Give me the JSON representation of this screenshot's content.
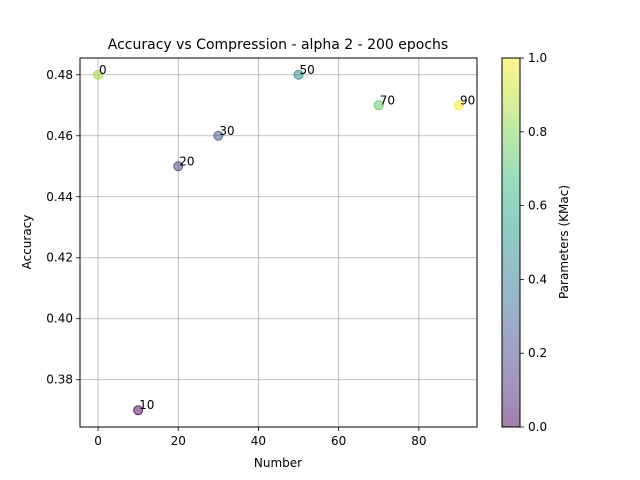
{
  "chart_data": {
    "type": "scatter",
    "title": "Accuracy vs Compression - alpha 2 - 200 epochs",
    "xlabel": "Number",
    "ylabel": "Accuracy",
    "xlim": [
      -4.5,
      94.5
    ],
    "ylim": [
      0.3645,
      0.4855
    ],
    "xticks": [
      0,
      20,
      40,
      60,
      80
    ],
    "xtick_labels": [
      "0",
      "20",
      "40",
      "60",
      "80"
    ],
    "yticks": [
      0.38,
      0.4,
      0.42,
      0.44,
      0.46,
      0.48
    ],
    "ytick_labels": [
      "0.38",
      "0.40",
      "0.42",
      "0.44",
      "0.46",
      "0.48"
    ],
    "grid": true,
    "points": [
      {
        "x": 0,
        "y": 0.48,
        "label": "0",
        "c": 0.85
      },
      {
        "x": 10,
        "y": 0.37,
        "label": "10",
        "c": 0.0
      },
      {
        "x": 20,
        "y": 0.45,
        "label": "20",
        "c": 0.17
      },
      {
        "x": 30,
        "y": 0.46,
        "label": "30",
        "c": 0.26
      },
      {
        "x": 50,
        "y": 0.48,
        "label": "50",
        "c": 0.48
      },
      {
        "x": 70,
        "y": 0.47,
        "label": "70",
        "c": 0.74
      },
      {
        "x": 90,
        "y": 0.47,
        "label": "90",
        "c": 1.0
      }
    ],
    "colorbar": {
      "label": "Parameters (KMac)",
      "range": [
        0.0,
        1.0
      ],
      "ticks": [
        0.0,
        0.2,
        0.4,
        0.6,
        0.8,
        1.0
      ],
      "tick_labels": [
        "0.0",
        "0.2",
        "0.4",
        "0.6",
        "0.8",
        "1.0"
      ],
      "colormap": [
        "#440154",
        "#482878",
        "#3e4989",
        "#31688e",
        "#26828e",
        "#1f9e89",
        "#35b779",
        "#6ece58",
        "#b5de2b",
        "#fde725"
      ]
    },
    "marker_alpha": 0.5
  }
}
